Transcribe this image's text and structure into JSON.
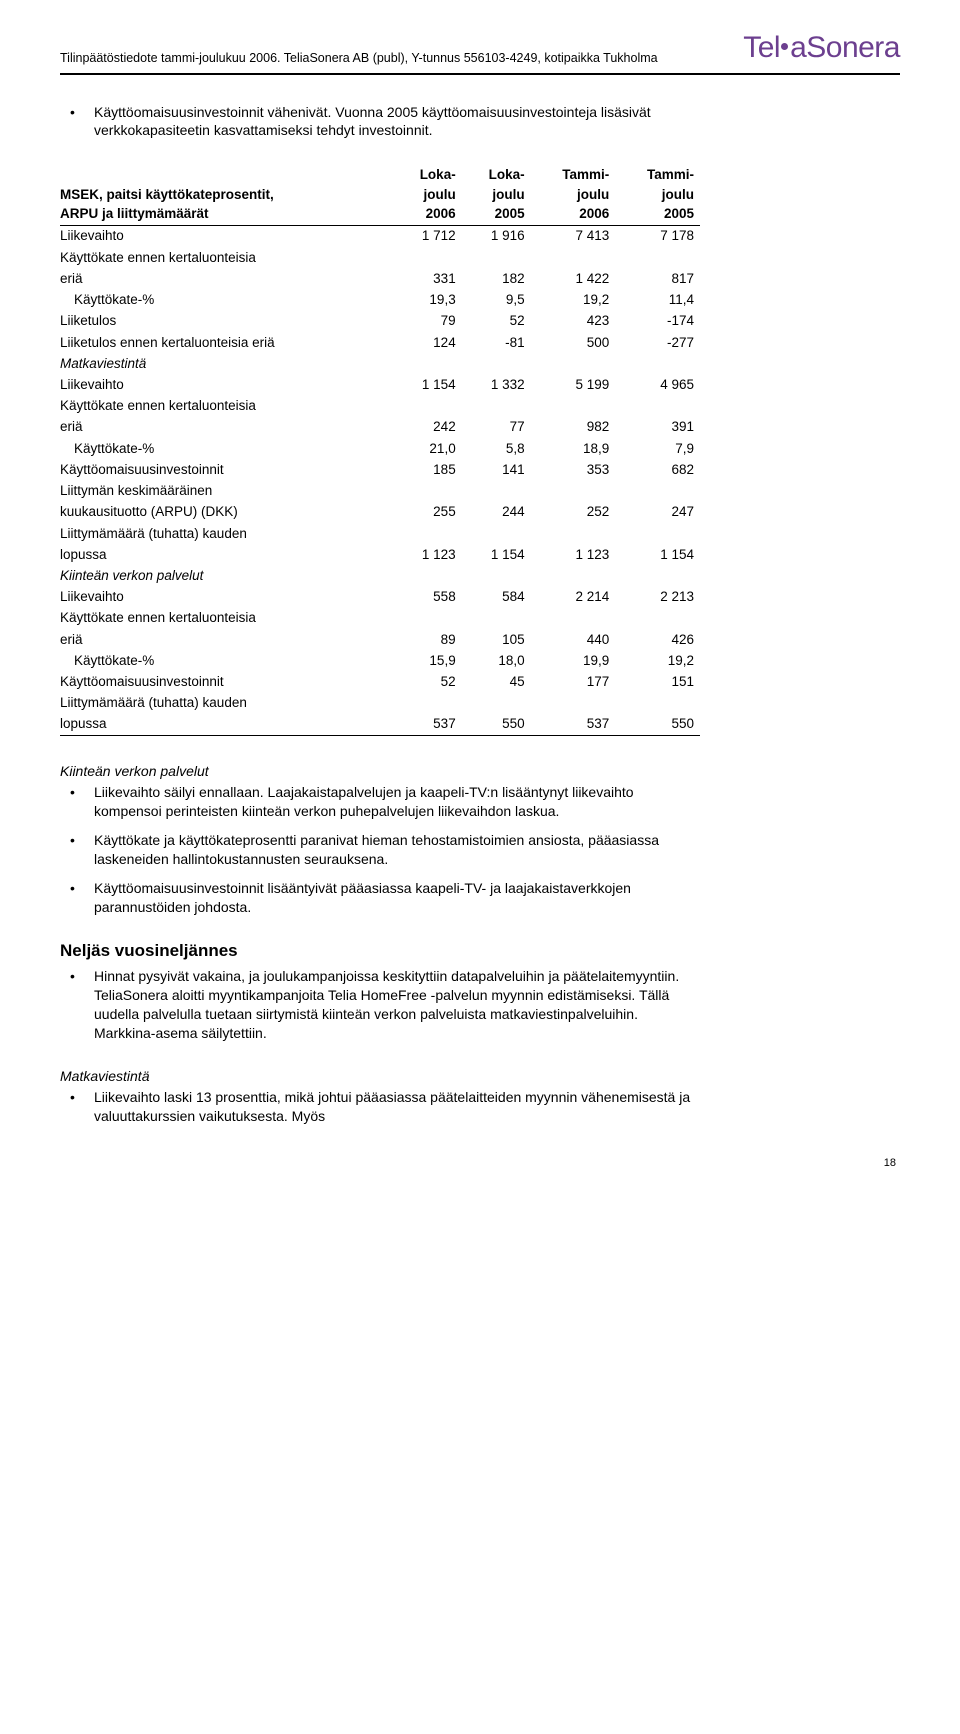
{
  "header": {
    "line": "Tilinpäätöstiedote tammi-joulukuu 2006. TeliaSonera AB (publ), Y-tunnus 556103-4249, kotipaikka Tukholma",
    "brand_part1": "Tel",
    "brand_part2": "aSonera",
    "brand_color": "#6c3f8f"
  },
  "intro_bullet": "Käyttöomaisuusinvestoinnit vähenivät. Vuonna 2005 käyttöomaisuusinvestointeja lisäsivät verkkokapasiteetin kasvattamiseksi tehdyt investoinnit.",
  "table": {
    "col_widths": [
      "52%",
      "12%",
      "12%",
      "12%",
      "12%"
    ],
    "header_top": [
      "",
      "Loka-",
      "Loka-",
      "Tammi-",
      "Tammi-"
    ],
    "header_mid": [
      "MSEK, paitsi käyttökateprosentit,",
      "joulu",
      "joulu",
      "joulu",
      "joulu"
    ],
    "header_bot": [
      "ARPU ja liittymämäärät",
      "2006",
      "2005",
      "2006",
      "2005"
    ],
    "rows": [
      {
        "cells": [
          "Liikevaihto",
          "1 712",
          "1 916",
          "7 413",
          "7 178"
        ]
      },
      {
        "cells": [
          "Käyttökate ennen kertaluonteisia",
          "",
          "",
          "",
          ""
        ]
      },
      {
        "cells": [
          "eriä",
          "331",
          "182",
          "1 422",
          "817"
        ]
      },
      {
        "cells": [
          "Käyttökate-%",
          "19,3",
          "9,5",
          "19,2",
          "11,4"
        ],
        "indent": true
      },
      {
        "cells": [
          "Liiketulos",
          "79",
          "52",
          "423",
          "-174"
        ]
      },
      {
        "cells": [
          "Liiketulos ennen kertaluonteisia eriä",
          "124",
          "-81",
          "500",
          "-277"
        ]
      },
      {
        "cells": [
          "Matkaviestintä",
          "",
          "",
          "",
          ""
        ],
        "italic": true
      },
      {
        "cells": [
          "Liikevaihto",
          "1 154",
          "1 332",
          "5 199",
          "4 965"
        ]
      },
      {
        "cells": [
          "Käyttökate ennen kertaluonteisia",
          "",
          "",
          "",
          ""
        ]
      },
      {
        "cells": [
          "eriä",
          "242",
          "77",
          "982",
          "391"
        ]
      },
      {
        "cells": [
          "Käyttökate-%",
          "21,0",
          "5,8",
          "18,9",
          "7,9"
        ],
        "indent": true
      },
      {
        "cells": [
          "Käyttöomaisuusinvestoinnit",
          "185",
          "141",
          "353",
          "682"
        ]
      },
      {
        "cells": [
          "Liittymän keskimääräinen",
          "",
          "",
          "",
          ""
        ]
      },
      {
        "cells": [
          "kuukausituotto (ARPU) (DKK)",
          "255",
          "244",
          "252",
          "247"
        ]
      },
      {
        "cells": [
          "Liittymämäärä (tuhatta) kauden",
          "",
          "",
          "",
          ""
        ]
      },
      {
        "cells": [
          "lopussa",
          "1 123",
          "1 154",
          "1 123",
          "1 154"
        ]
      },
      {
        "cells": [
          "Kiinteän verkon palvelut",
          "",
          "",
          "",
          ""
        ],
        "italic": true
      },
      {
        "cells": [
          "Liikevaihto",
          "558",
          "584",
          "2 214",
          "2 213"
        ]
      },
      {
        "cells": [
          "Käyttökate ennen kertaluonteisia",
          "",
          "",
          "",
          ""
        ]
      },
      {
        "cells": [
          "eriä",
          "89",
          "105",
          "440",
          "426"
        ]
      },
      {
        "cells": [
          "Käyttökate-%",
          "15,9",
          "18,0",
          "19,9",
          "19,2"
        ],
        "indent": true
      },
      {
        "cells": [
          "Käyttöomaisuusinvestoinnit",
          "52",
          "45",
          "177",
          "151"
        ]
      },
      {
        "cells": [
          "Liittymämäärä (tuhatta) kauden",
          "",
          "",
          "",
          ""
        ]
      },
      {
        "cells": [
          "lopussa",
          "537",
          "550",
          "537",
          "550"
        ]
      }
    ]
  },
  "section1": {
    "heading": "Kiinteän verkon palvelut",
    "bullets": [
      "Liikevaihto säilyi ennallaan. Laajakaistapalvelujen ja kaapeli-TV:n lisääntynyt liikevaihto kompensoi perinteisten kiinteän verkon puhepalvelujen liikevaihdon laskua.",
      "Käyttökate ja käyttökateprosentti paranivat hieman tehostamistoimien ansiosta, pääasiassa laskeneiden hallintokustannusten seurauksena.",
      "Käyttöomaisuusinvestoinnit lisääntyivät pääasiassa kaapeli-TV- ja laajakaistaverkkojen parannustöiden johdosta."
    ]
  },
  "section2": {
    "heading": "Neljäs vuosineljännes",
    "bullets": [
      "Hinnat pysyivät vakaina, ja joulukampanjoissa keskityttiin datapalveluihin ja päätelaitemyyntiin. TeliaSonera aloitti myyntikampanjoita Telia HomeFree -palvelun myynnin edistämiseksi. Tällä uudella palvelulla tuetaan siirtymistä kiinteän verkon palveluista matkaviestinpalveluihin. Markkina-asema säilytettiin."
    ]
  },
  "section3": {
    "heading": "Matkaviestintä",
    "bullets": [
      "Liikevaihto laski 13 prosenttia, mikä johtui pääasiassa päätelaitteiden myynnin vähenemisestä ja valuuttakurssien vaikutuksesta. Myös"
    ]
  },
  "page_number": "18"
}
